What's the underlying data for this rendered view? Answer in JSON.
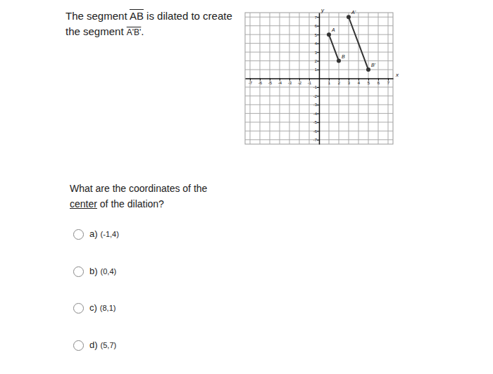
{
  "statement": {
    "before": "The segment ",
    "segment": "AB",
    "middle": " is dilated to create the segment ",
    "image_segment": "A'B'",
    "after": "."
  },
  "question": {
    "before": "What are the coordinates of the ",
    "emphasis": "center",
    "after": " of the dilation?"
  },
  "options": [
    {
      "letter": "a)",
      "answer": "(-1,4)"
    },
    {
      "letter": "b)",
      "answer": "(0,4)"
    },
    {
      "letter": "c)",
      "answer": "(8,1)"
    },
    {
      "letter": "d)",
      "answer": "(5,7)"
    }
  ],
  "chart_data": {
    "type": "line",
    "x_label": "x",
    "y_label": "y",
    "xlim": [
      -7.5,
      7.5
    ],
    "ylim": [
      -7.5,
      7.5
    ],
    "xticks": [
      -7,
      -6,
      -5,
      -4,
      -3,
      -2,
      -1,
      1,
      2,
      3,
      4,
      5,
      6,
      7
    ],
    "yticks": [
      -7,
      -6,
      -5,
      -4,
      -3,
      -2,
      -1,
      1,
      2,
      3,
      4,
      5,
      6,
      7
    ],
    "grid": true,
    "marker": "circle",
    "series": [
      {
        "x": [
          1,
          2
        ],
        "values": [
          5,
          2
        ],
        "point_labels": [
          "A",
          "B"
        ],
        "color": "#333333"
      },
      {
        "x": [
          3,
          5
        ],
        "values": [
          7,
          1
        ],
        "point_labels": [
          "A'",
          "B'"
        ],
        "color": "#333333"
      }
    ]
  }
}
